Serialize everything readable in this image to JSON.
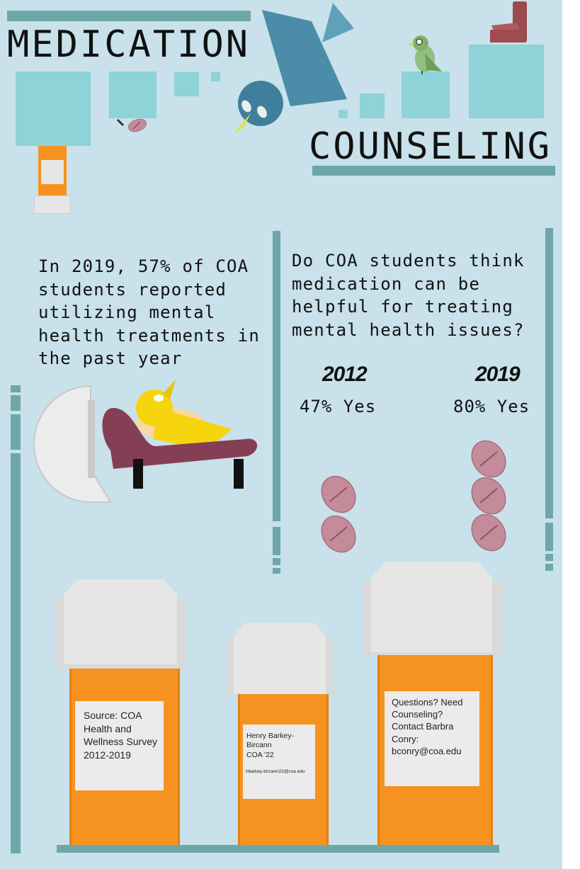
{
  "title": {
    "word1": "MEDICATION",
    "word2": "COUNSELING"
  },
  "left_stat": "In 2019, 57% of COA students reported utilizing mental health treatments in the past year",
  "question": "Do COA students think medication can be helpful for treating mental health issues?",
  "results": [
    {
      "year": "2012",
      "value": "47% Yes"
    },
    {
      "year": "2019",
      "value": "80% Yes"
    }
  ],
  "labels": {
    "source": "Source:  COA Health and Wellness Survey 2012-2019",
    "author_name": "Henry Barkey-Bircann",
    "author_class": "COA '22",
    "author_email": "hbarkey-bircann22@coa.edu",
    "contact": "Questions? Need Counseling? Contact Barbra Conry: bconry@coa.edu"
  },
  "colors": {
    "background": "#c8e1ea",
    "teal_bar": "#6ea7a7",
    "tile": "#8dd3d7",
    "bottle_orange": "#f59220",
    "cap_gray": "#e6e6e6",
    "pill_mauve": "#c48c9b",
    "couch": "#843f55",
    "bird_yellow": "#f7d50e",
    "big_bird_blue": "#4b8ca8"
  },
  "icons": [
    "blue-bird-icon",
    "green-bird-icon",
    "armchair-icon",
    "pill-icon",
    "pill-bottle-icon",
    "couch-icon",
    "yellow-bird-icon",
    "half-pill-icon"
  ]
}
